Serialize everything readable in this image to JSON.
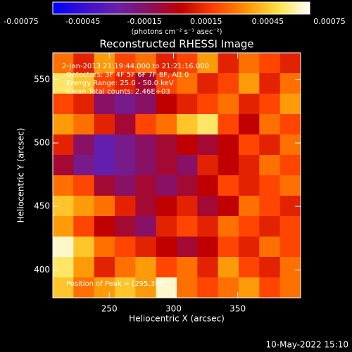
{
  "chart_data": {
    "type": "heatmap",
    "title": "Reconstructed RHESSI Image",
    "x_label": "Heliocentric X (arcsec)",
    "y_label": "Heliocentric Y (arcsec)",
    "xlim": [
      206,
      399
    ],
    "ylim": [
      378,
      571
    ],
    "xticks": [
      250,
      300,
      350
    ],
    "yticks": [
      400,
      450,
      500,
      550
    ],
    "colorbar_label": "(photons cm⁻² s⁻¹ asec⁻²)",
    "clim": [
      -0.00075,
      0.00075
    ],
    "colorbar_ticks": [
      -0.00075,
      -0.00045,
      -0.00015,
      0.00015,
      0.00045,
      0.00075
    ],
    "colormap": [
      "#0000ff",
      "#3a10d0",
      "#6a20a8",
      "#8a1060",
      "#c00000",
      "#ff4000",
      "#ff9000",
      "#ffe040",
      "#ffffff"
    ],
    "annotations": [
      "2-Jan-2013 21:19:44.000 to 21:21:16.000",
      "Detectors: 3F 4F 5F 6F 7F 8F, Att 0",
      "Energy Range: 25.0 - 50.0 keV",
      "Clean     Total counts: 2.46E+03"
    ],
    "peak_label": "Position of Peak = [295,395]",
    "footer": "10-May-2022 15:10",
    "z": [
      [
        0.0003,
        0.0001,
        0.0004,
        0.0002,
        0.0003,
        0.0001,
        0.0002,
        0.0004,
        0.0001,
        0.0003,
        0.0002,
        0.0001
      ],
      [
        0.0006,
        0.0005,
        0.0002,
        0.0001,
        -0.0001,
        0.0002,
        0.0003,
        0.0001,
        0.0002,
        0.0004,
        0.0001,
        0.0003
      ],
      [
        0.0002,
        0.0001,
        -0.0002,
        -0.0003,
        -0.0002,
        0.0,
        0.0001,
        0.0002,
        0.0003,
        0.0001,
        0.0002,
        0.0004
      ],
      [
        0.0004,
        0.0003,
        0.0001,
        -0.0001,
        0.0002,
        0.0003,
        0.0005,
        0.0006,
        0.0002,
        0.0,
        0.0003,
        0.0002
      ],
      [
        0.0001,
        -0.0002,
        -0.0004,
        -0.0003,
        -0.0002,
        -0.0001,
        0.0,
        -0.0001,
        0.0,
        0.0002,
        0.0001,
        0.0003
      ],
      [
        -0.0001,
        -0.0003,
        -0.0004,
        -0.0003,
        -0.0002,
        -0.0001,
        -0.0002,
        0.0001,
        0.0,
        0.0001,
        0.0003,
        0.0002
      ],
      [
        0.0003,
        0.0002,
        -0.0001,
        -0.0002,
        -0.0001,
        -0.0002,
        -0.0001,
        0.0,
        0.0002,
        0.0001,
        0.0002,
        0.0003
      ],
      [
        0.0005,
        0.0004,
        0.0003,
        0.0001,
        -0.0001,
        0.0,
        0.0001,
        -0.0001,
        0.0,
        0.0003,
        0.0002,
        0.0001
      ],
      [
        0.0004,
        0.0002,
        0.0,
        -0.0001,
        -0.0002,
        0.0001,
        0.0002,
        0.0001,
        0.0003,
        0.0002,
        0.0001,
        0.0002
      ],
      [
        0.0007,
        0.0005,
        0.0003,
        0.0002,
        0.0001,
        0.0,
        -0.0001,
        0.0,
        0.0002,
        0.0001,
        0.0003,
        0.0002
      ],
      [
        0.0006,
        0.0004,
        0.0001,
        0.0003,
        0.0004,
        0.0002,
        0.0003,
        0.0001,
        0.0004,
        0.0002,
        0.0001,
        0.0003
      ],
      [
        0.0005,
        0.0003,
        0.0004,
        0.0005,
        0.0004,
        0.0007,
        0.0003,
        0.0002,
        0.0003,
        0.0004,
        0.0002,
        0.0003
      ]
    ]
  }
}
